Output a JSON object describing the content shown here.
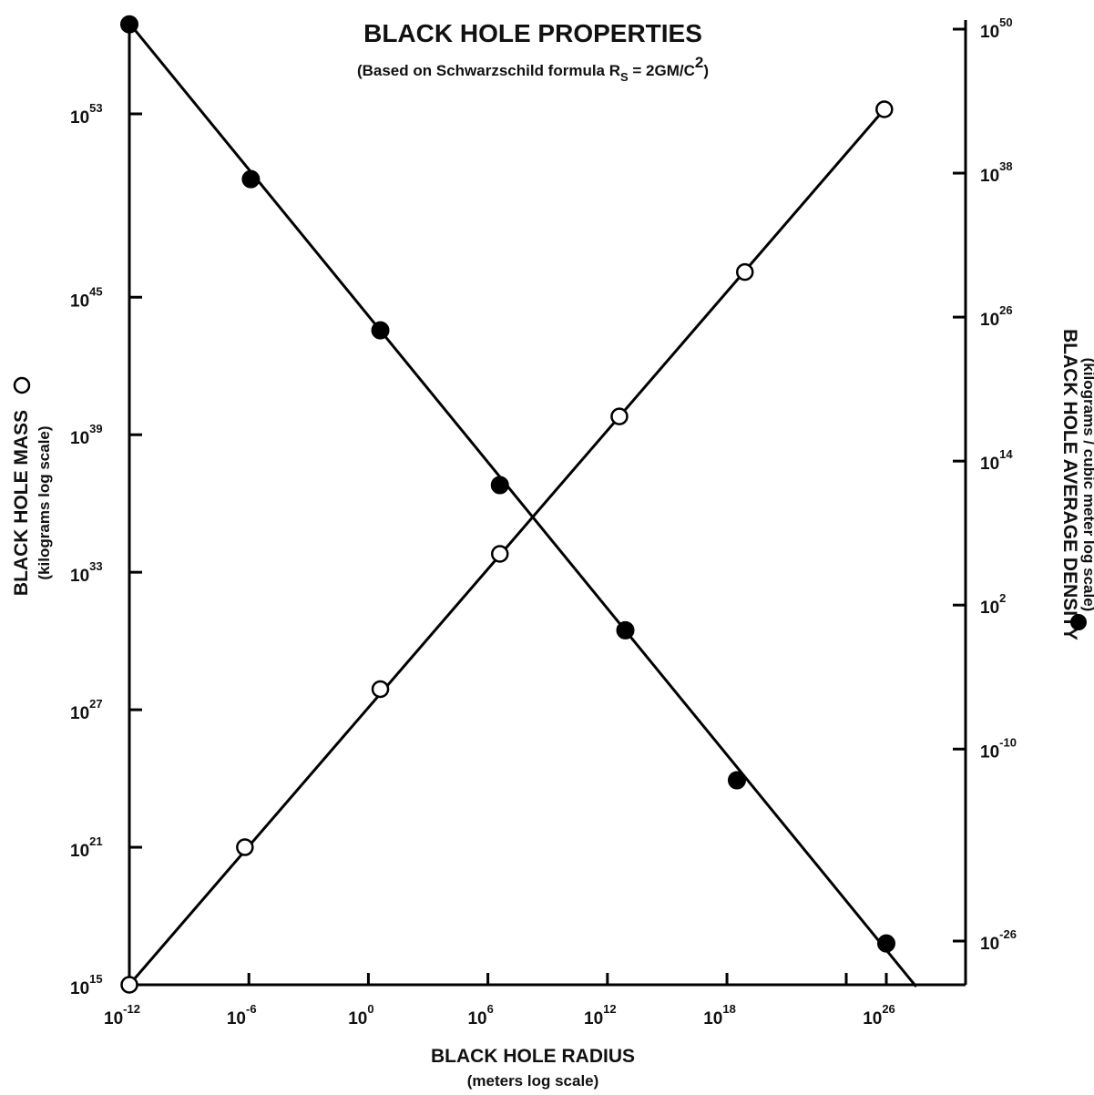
{
  "chart_data": {
    "type": "line",
    "title": "BLACK HOLE PROPERTIES",
    "subtitle": {
      "prefix": "(Based on Schwarzschild formula R",
      "subscript": "S",
      "middle": " = 2GM/C",
      "superscript": "2",
      "suffix": ")"
    },
    "x_axis": {
      "label": "BLACK HOLE RADIUS",
      "sublabel": "(meters log scale)",
      "scale": "log",
      "range_exponent": [
        -12,
        28
      ],
      "tick_exponents": [
        -12,
        -6,
        0,
        6,
        12,
        18,
        26
      ],
      "tick_base": "10"
    },
    "y_left_axis": {
      "label": "BLACK HOLE MASS",
      "sublabel": "(kilograms log scale)",
      "marker": "open-circle",
      "scale": "log",
      "range_exponent": [
        15,
        57
      ],
      "tick_exponents": [
        15,
        21,
        27,
        33,
        39,
        45,
        53
      ],
      "tick_base": "10"
    },
    "y_right_axis": {
      "label": "BLACK HOLE AVERAGE DENSITY",
      "sublabel": "(kilograms / cubic meter log scale)",
      "marker": "filled-circle",
      "scale": "log",
      "range_exponent": [
        -30,
        50
      ],
      "tick_exponents": [
        -26,
        -10,
        2,
        14,
        26,
        38,
        50
      ],
      "tick_base": "10"
    },
    "series": [
      {
        "name": "BLACK HOLE MASS",
        "axis": "left",
        "marker": "open",
        "color": "#000000",
        "line_start": {
          "x_exp": -12,
          "y_exp": 15
        },
        "line_end": {
          "x_exp": 26,
          "y_exp": 53.3
        },
        "points": [
          {
            "x_exp": -12,
            "y_exp": 15
          },
          {
            "x_exp": -6.2,
            "y_exp": 21
          },
          {
            "x_exp": 0.6,
            "y_exp": 27.9
          },
          {
            "x_exp": 6.6,
            "y_exp": 33.8
          },
          {
            "x_exp": 12.6,
            "y_exp": 39.8
          },
          {
            "x_exp": 18.9,
            "y_exp": 46.1
          },
          {
            "x_exp": 25.9,
            "y_exp": 53.2
          }
        ]
      },
      {
        "name": "BLACK HOLE AVERAGE DENSITY",
        "axis": "right",
        "marker": "filled",
        "color": "#000000",
        "line_start": {
          "x_exp": -12,
          "y_exp": 50.5
        },
        "line_end": {
          "x_exp": 27.5,
          "y_exp": -29.8
        },
        "points": [
          {
            "x_exp": -12,
            "y_exp": 50.4
          },
          {
            "x_exp": -5.9,
            "y_exp": 37.5
          },
          {
            "x_exp": 0.6,
            "y_exp": 24.9
          },
          {
            "x_exp": 6.6,
            "y_exp": 12.0
          },
          {
            "x_exp": 12.9,
            "y_exp": -0.1
          },
          {
            "x_exp": 18.5,
            "y_exp": -12.6
          },
          {
            "x_exp": 26.0,
            "y_exp": -26.2
          }
        ]
      }
    ]
  }
}
